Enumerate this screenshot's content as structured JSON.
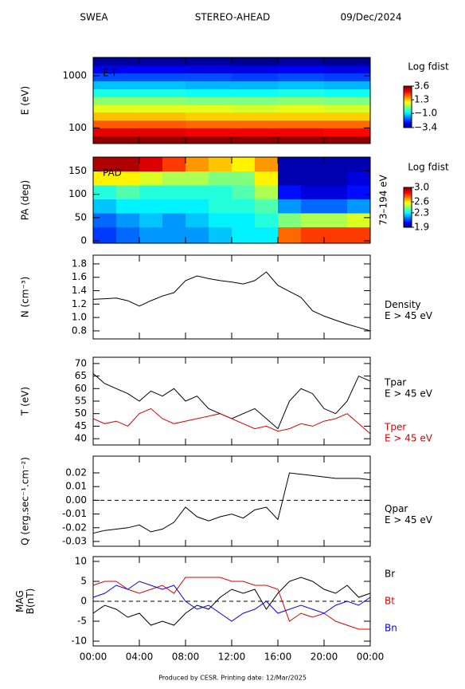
{
  "header": {
    "left": "SWEA",
    "center": "STEREO-AHEAD",
    "right": "09/Dec/2024"
  },
  "footer": "Produced by CESR.   Printing date: 12/Mar/2025",
  "chart_data": [
    {
      "type": "heatmap",
      "label": "E-T",
      "ylabel": [
        "E (eV)"
      ],
      "ylog": true,
      "xlim": [
        0,
        24
      ],
      "xticks": [
        0,
        4,
        8,
        12,
        16,
        20,
        24
      ],
      "ylim": [
        50,
        2260
      ],
      "yticks": [
        100,
        1000
      ],
      "xbins": [
        0,
        4,
        8,
        12,
        16,
        20,
        24
      ],
      "ybins": [
        50,
        70,
        100,
        140,
        200,
        280,
        400,
        560,
        800,
        1130,
        1600,
        2260
      ],
      "z": [
        [
          3.5,
          3.5,
          3.5,
          3.5,
          3.5,
          3.5
        ],
        [
          2.9,
          2.9,
          2.8,
          2.8,
          2.8,
          2.7
        ],
        [
          2.1,
          2.1,
          2.0,
          2.0,
          2.0,
          2.0
        ],
        [
          1.4,
          1.4,
          1.3,
          1.3,
          1.3,
          1.3
        ],
        [
          0.8,
          0.8,
          0.8,
          0.7,
          0.8,
          0.7
        ],
        [
          0.2,
          0.2,
          0.1,
          0.1,
          0.2,
          0.1
        ],
        [
          -0.6,
          -0.6,
          -0.7,
          -0.7,
          -0.6,
          -0.7
        ],
        [
          -1.2,
          -1.2,
          -1.3,
          -1.3,
          -1.2,
          -1.3
        ],
        [
          -2.0,
          -2.0,
          -2.0,
          -2.1,
          -2.0,
          -2.1
        ],
        [
          -2.6,
          -2.6,
          -2.7,
          -2.7,
          -2.6,
          -2.7
        ],
        [
          -3.2,
          -3.2,
          -3.2,
          -3.3,
          -3.2,
          -3.3
        ]
      ],
      "zlim": [
        -3.4,
        3.6
      ],
      "colorbar_title": "Log fdist",
      "zticks": [
        3.6,
        1.3,
        {
          "value": -1.0,
          "label": "−1.0"
        },
        {
          "value": -3.4,
          "label": "−3.4"
        }
      ]
    },
    {
      "type": "heatmap",
      "label": "PAD",
      "ylabel": [
        "PA (deg)"
      ],
      "side_label": "73–194 eV",
      "xlim": [
        0,
        24
      ],
      "xticks": [
        0,
        4,
        8,
        12,
        16,
        20,
        24
      ],
      "ylim": [
        -5,
        180
      ],
      "yticks": [
        0,
        50,
        100,
        150
      ],
      "xbins": [
        0,
        2,
        4,
        6,
        8,
        10,
        12,
        14,
        16,
        18,
        20,
        22,
        24
      ],
      "ybins": [
        -5,
        30,
        60,
        90,
        120,
        150,
        180
      ],
      "z": [
        [
          2.1,
          2.15,
          2.2,
          2.2,
          2.2,
          2.25,
          2.3,
          2.3,
          2.75,
          2.8,
          2.8,
          2.8
        ],
        [
          2.15,
          2.2,
          2.25,
          2.2,
          2.25,
          2.3,
          2.3,
          2.35,
          2.45,
          2.5,
          2.5,
          2.55
        ],
        [
          2.25,
          2.3,
          2.3,
          2.3,
          2.3,
          2.35,
          2.35,
          2.4,
          2.2,
          2.15,
          2.15,
          2.2
        ],
        [
          2.35,
          2.4,
          2.35,
          2.35,
          2.35,
          2.35,
          2.4,
          2.5,
          2.05,
          2.0,
          2.0,
          2.05
        ],
        [
          2.6,
          2.6,
          2.55,
          2.5,
          2.5,
          2.45,
          2.45,
          2.6,
          1.95,
          1.95,
          1.95,
          2.0
        ],
        [
          2.95,
          2.95,
          2.9,
          2.8,
          2.7,
          2.65,
          2.6,
          2.7,
          1.95,
          1.95,
          1.95,
          1.95
        ]
      ],
      "zlim": [
        1.9,
        3.0
      ],
      "colorbar_title": "Log fdist",
      "zticks": [
        {
          "value": 3.0,
          "label": "3.0"
        },
        2.6,
        2.3,
        1.9
      ]
    },
    {
      "type": "line",
      "ylabel": [
        "N (cm⁻³)"
      ],
      "xlim": [
        0,
        24
      ],
      "xticks": [
        0,
        4,
        8,
        12,
        16,
        20,
        24
      ],
      "ylim": [
        0.68,
        1.93
      ],
      "yticks": [
        {
          "value": 0.8,
          "label": "0.8"
        },
        {
          "value": 1.0,
          "label": "1.0"
        },
        {
          "value": 1.2,
          "label": "1.2"
        },
        {
          "value": 1.4,
          "label": "1.4"
        },
        {
          "value": 1.6,
          "label": "1.6"
        },
        {
          "value": 1.8,
          "label": "1.8"
        }
      ],
      "x": [
        0,
        1,
        2,
        3,
        4,
        5,
        6,
        7,
        8,
        9,
        10,
        11,
        12,
        13,
        14,
        15,
        16,
        17,
        18,
        19,
        20,
        21,
        22,
        23,
        24
      ],
      "series": [
        {
          "name": "Density",
          "energy": "E > 45 eV",
          "color": "#000000",
          "values": [
            1.27,
            1.28,
            1.29,
            1.25,
            1.17,
            1.25,
            1.32,
            1.37,
            1.55,
            1.62,
            1.58,
            1.55,
            1.53,
            1.5,
            1.55,
            1.68,
            1.48,
            1.39,
            1.3,
            1.1,
            1.02,
            0.96,
            0.9,
            0.85,
            0.8
          ]
        }
      ]
    },
    {
      "type": "line",
      "ylabel": [
        "T (eV)"
      ],
      "xlim": [
        0,
        24
      ],
      "xticks": [
        0,
        4,
        8,
        12,
        16,
        20,
        24
      ],
      "ylim": [
        37.5,
        72.5
      ],
      "yticks": [
        40,
        45,
        50,
        55,
        60,
        65,
        70
      ],
      "x": [
        0,
        1,
        2,
        3,
        4,
        5,
        6,
        7,
        8,
        9,
        10,
        11,
        12,
        13,
        14,
        15,
        16,
        17,
        18,
        19,
        20,
        21,
        22,
        23,
        24
      ],
      "series": [
        {
          "name": "Tpar",
          "energy": "E > 45 eV",
          "color": "#000000",
          "values": [
            66,
            62,
            60,
            58,
            55,
            59,
            57,
            60,
            55,
            57,
            52,
            50,
            48,
            50,
            52,
            48,
            44,
            55,
            60,
            58,
            52,
            50,
            55,
            65,
            63
          ]
        },
        {
          "name": "Tper",
          "energy": "E > 45 eV",
          "color": "#e00000",
          "values": [
            48,
            46,
            47,
            45,
            50,
            52,
            48,
            46,
            47,
            48,
            49,
            50,
            48,
            46,
            44,
            45,
            43,
            44,
            46,
            45,
            47,
            48,
            50,
            46,
            42
          ]
        }
      ]
    },
    {
      "type": "line",
      "ylabel": [
        "Q (erg.sec⁻¹.cm⁻²)"
      ],
      "zero_line": true,
      "xlim": [
        0,
        24
      ],
      "xticks": [
        0,
        4,
        8,
        12,
        16,
        20,
        24
      ],
      "ylim": [
        -0.0335,
        0.0322
      ],
      "yticks": [
        0.02,
        0.01,
        {
          "value": 0,
          "label": "0.00"
        },
        -0.01,
        -0.02,
        -0.03
      ],
      "x": [
        0,
        1,
        2,
        3,
        4,
        5,
        6,
        7,
        8,
        9,
        10,
        11,
        12,
        13,
        14,
        15,
        16,
        17,
        18,
        19,
        20,
        21,
        22,
        23,
        24
      ],
      "series": [
        {
          "name": "Qpar",
          "energy": "E > 45 eV",
          "color": "#000000",
          "values": [
            -0.024,
            -0.022,
            -0.021,
            -0.02,
            -0.018,
            -0.023,
            -0.021,
            -0.016,
            -0.005,
            -0.012,
            -0.015,
            -0.012,
            -0.01,
            -0.013,
            -0.007,
            -0.005,
            -0.014,
            0.02,
            0.019,
            0.018,
            0.017,
            0.016,
            0.016,
            0.016,
            0.015
          ]
        }
      ]
    },
    {
      "type": "line",
      "ylabel": [
        "MAG",
        "B(nT)"
      ],
      "zero_line": true,
      "xlim": [
        0,
        24
      ],
      "xticks": [
        {
          "value": 0,
          "label": "00:00"
        },
        {
          "value": 4,
          "label": "04:00"
        },
        {
          "value": 8,
          "label": "08:00"
        },
        {
          "value": 12,
          "label": "12:00"
        },
        {
          "value": 16,
          "label": "16:00"
        },
        {
          "value": 20,
          "label": "20:00"
        },
        {
          "value": 24,
          "label": "00:00"
        }
      ],
      "ylim": [
        -11.2,
        11.2
      ],
      "yticks": [
        10,
        5,
        0,
        -5,
        -10
      ],
      "x": [
        0,
        1,
        2,
        3,
        4,
        5,
        6,
        7,
        8,
        9,
        10,
        11,
        12,
        13,
        14,
        15,
        16,
        17,
        18,
        19,
        20,
        21,
        22,
        23,
        24
      ],
      "series": [
        {
          "name": "Br",
          "color": "#000000",
          "values": [
            -3,
            -1,
            -2,
            -4,
            -3,
            -6,
            -5,
            -6,
            -3,
            -1,
            -2,
            1,
            3,
            2,
            3,
            -2,
            2,
            5,
            6,
            5,
            3,
            2,
            4,
            1,
            2
          ]
        },
        {
          "name": "Bt",
          "color": "#e00000",
          "values": [
            4,
            5,
            5,
            3,
            2,
            3,
            4,
            2,
            6,
            6,
            6,
            6,
            5,
            5,
            4,
            4,
            3,
            -5,
            -3,
            -4,
            -3,
            -5,
            -6,
            -7,
            -7
          ]
        },
        {
          "name": "Bn",
          "color": "#0000ff",
          "values": [
            1,
            2,
            4,
            3,
            5,
            4,
            3,
            4,
            0,
            -2,
            -1,
            -3,
            -5,
            -3,
            -2,
            0,
            -3,
            -2,
            -1,
            -2,
            -3,
            -1,
            0,
            -1,
            1
          ]
        }
      ]
    }
  ]
}
